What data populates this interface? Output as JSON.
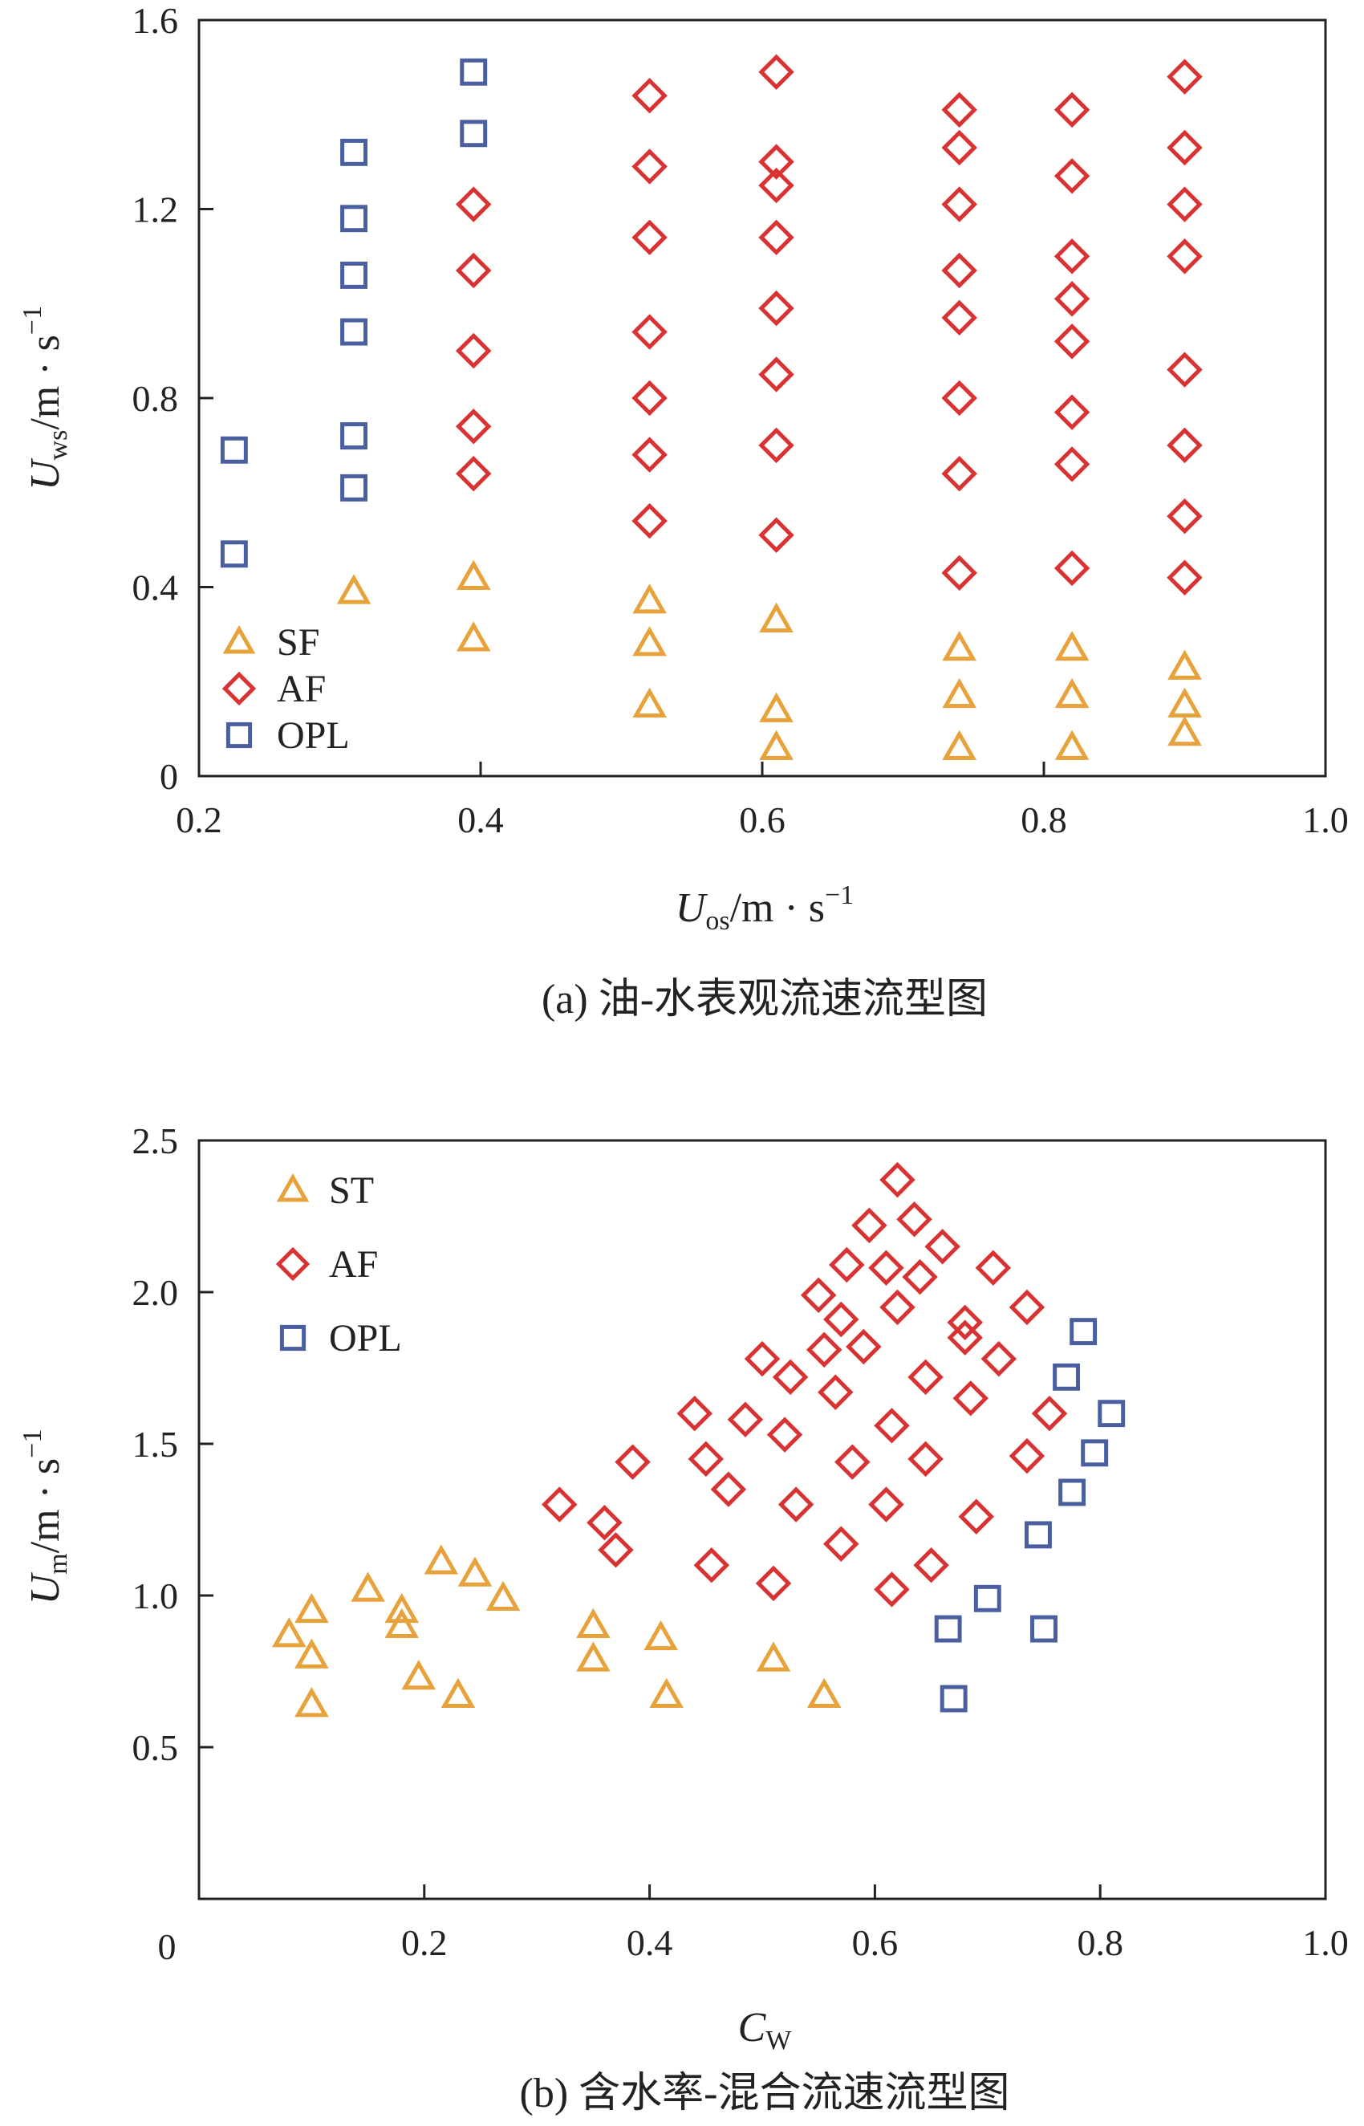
{
  "colors": {
    "SF": "#e8a23c",
    "ST": "#e8a23c",
    "AF": "#d93232",
    "OPL": "#4a5fa0",
    "axis": "#222222"
  },
  "chart_data": [
    {
      "type": "scatter",
      "title": "",
      "caption": "(a) 油-水表观流速流型图",
      "xlabel": {
        "main": "U",
        "sub": "os",
        "rest": "/m · s",
        "sup": "−1"
      },
      "ylabel": {
        "main": "U",
        "sub": "ws",
        "rest": "/m · s",
        "sup": "−1"
      },
      "xlim": [
        0.2,
        1.0
      ],
      "ylim": [
        0,
        1.6
      ],
      "xticks": [
        "0.2",
        "0.4",
        "0.6",
        "0.8",
        "1.0"
      ],
      "yticks": [
        "0",
        "0.4",
        "0.8",
        "1.2",
        "1.6"
      ],
      "legend_position": "bottom-left",
      "series": [
        {
          "name": "SF",
          "marker": "triangle",
          "color_key": "SF",
          "points": [
            [
              0.31,
              0.39
            ],
            [
              0.395,
              0.42
            ],
            [
              0.395,
              0.29
            ],
            [
              0.52,
              0.37
            ],
            [
              0.52,
              0.28
            ],
            [
              0.52,
              0.15
            ],
            [
              0.61,
              0.33
            ],
            [
              0.61,
              0.14
            ],
            [
              0.61,
              0.06
            ],
            [
              0.74,
              0.27
            ],
            [
              0.74,
              0.17
            ],
            [
              0.74,
              0.06
            ],
            [
              0.82,
              0.27
            ],
            [
              0.82,
              0.17
            ],
            [
              0.82,
              0.06
            ],
            [
              0.9,
              0.23
            ],
            [
              0.9,
              0.15
            ],
            [
              0.9,
              0.09
            ]
          ]
        },
        {
          "name": "AF",
          "marker": "diamond",
          "color_key": "AF",
          "points": [
            [
              0.395,
              1.21
            ],
            [
              0.395,
              1.07
            ],
            [
              0.395,
              0.9
            ],
            [
              0.395,
              0.74
            ],
            [
              0.395,
              0.64
            ],
            [
              0.52,
              1.44
            ],
            [
              0.52,
              1.29
            ],
            [
              0.52,
              1.14
            ],
            [
              0.52,
              0.94
            ],
            [
              0.52,
              0.8
            ],
            [
              0.52,
              0.68
            ],
            [
              0.52,
              0.54
            ],
            [
              0.61,
              1.49
            ],
            [
              0.61,
              1.3
            ],
            [
              0.61,
              1.25
            ],
            [
              0.61,
              1.14
            ],
            [
              0.61,
              0.99
            ],
            [
              0.61,
              0.85
            ],
            [
              0.61,
              0.7
            ],
            [
              0.61,
              0.51
            ],
            [
              0.74,
              1.41
            ],
            [
              0.74,
              1.33
            ],
            [
              0.74,
              1.21
            ],
            [
              0.74,
              1.07
            ],
            [
              0.74,
              0.97
            ],
            [
              0.74,
              0.8
            ],
            [
              0.74,
              0.64
            ],
            [
              0.74,
              0.43
            ],
            [
              0.82,
              1.41
            ],
            [
              0.82,
              1.27
            ],
            [
              0.82,
              1.1
            ],
            [
              0.82,
              1.01
            ],
            [
              0.82,
              0.92
            ],
            [
              0.82,
              0.77
            ],
            [
              0.82,
              0.66
            ],
            [
              0.82,
              0.44
            ],
            [
              0.9,
              1.48
            ],
            [
              0.9,
              1.33
            ],
            [
              0.9,
              1.21
            ],
            [
              0.9,
              1.1
            ],
            [
              0.9,
              0.86
            ],
            [
              0.9,
              0.7
            ],
            [
              0.9,
              0.55
            ],
            [
              0.9,
              0.42
            ]
          ]
        },
        {
          "name": "OPL",
          "marker": "square",
          "color_key": "OPL",
          "points": [
            [
              0.225,
              0.69
            ],
            [
              0.225,
              0.47
            ],
            [
              0.31,
              1.32
            ],
            [
              0.31,
              1.18
            ],
            [
              0.31,
              1.06
            ],
            [
              0.31,
              0.94
            ],
            [
              0.31,
              0.72
            ],
            [
              0.31,
              0.61
            ],
            [
              0.395,
              1.49
            ],
            [
              0.395,
              1.36
            ]
          ]
        }
      ]
    },
    {
      "type": "scatter",
      "title": "",
      "caption": "(b) 含水率-混合流速流型图",
      "xlabel": {
        "main": "C",
        "sub": "W",
        "rest": "",
        "sup": ""
      },
      "ylabel": {
        "main": "U",
        "sub": "m",
        "rest": "/m · s",
        "sup": "−1"
      },
      "xlim": [
        0,
        1.0
      ],
      "ylim": [
        0,
        2.5
      ],
      "xticks": [
        "0",
        "0.2",
        "0.4",
        "0.6",
        "0.8",
        "1.0"
      ],
      "yticks": [
        "0.5",
        "1.0",
        "1.5",
        "2.0",
        "2.5"
      ],
      "legend_position": "top-left",
      "series": [
        {
          "name": "ST",
          "marker": "triangle",
          "color_key": "ST",
          "points": [
            [
              0.08,
              0.87
            ],
            [
              0.1,
              0.95
            ],
            [
              0.1,
              0.8
            ],
            [
              0.1,
              0.64
            ],
            [
              0.15,
              1.02
            ],
            [
              0.18,
              0.95
            ],
            [
              0.18,
              0.9
            ],
            [
              0.195,
              0.73
            ],
            [
              0.215,
              1.11
            ],
            [
              0.23,
              0.67
            ],
            [
              0.245,
              1.07
            ],
            [
              0.27,
              0.99
            ],
            [
              0.35,
              0.9
            ],
            [
              0.35,
              0.79
            ],
            [
              0.41,
              0.86
            ],
            [
              0.415,
              0.67
            ],
            [
              0.51,
              0.79
            ],
            [
              0.555,
              0.67
            ]
          ]
        },
        {
          "name": "AF",
          "marker": "diamond",
          "color_key": "AF",
          "points": [
            [
              0.32,
              1.3
            ],
            [
              0.36,
              1.24
            ],
            [
              0.37,
              1.15
            ],
            [
              0.385,
              1.44
            ],
            [
              0.44,
              1.6
            ],
            [
              0.45,
              1.45
            ],
            [
              0.455,
              1.1
            ],
            [
              0.47,
              1.35
            ],
            [
              0.485,
              1.58
            ],
            [
              0.5,
              1.78
            ],
            [
              0.51,
              1.04
            ],
            [
              0.52,
              1.53
            ],
            [
              0.525,
              1.72
            ],
            [
              0.53,
              1.3
            ],
            [
              0.55,
              1.99
            ],
            [
              0.555,
              1.81
            ],
            [
              0.565,
              1.67
            ],
            [
              0.57,
              1.17
            ],
            [
              0.57,
              1.91
            ],
            [
              0.575,
              2.09
            ],
            [
              0.58,
              1.44
            ],
            [
              0.59,
              1.82
            ],
            [
              0.595,
              2.22
            ],
            [
              0.61,
              1.3
            ],
            [
              0.61,
              2.08
            ],
            [
              0.615,
              1.02
            ],
            [
              0.615,
              1.56
            ],
            [
              0.62,
              2.37
            ],
            [
              0.62,
              1.95
            ],
            [
              0.635,
              2.24
            ],
            [
              0.64,
              2.05
            ],
            [
              0.645,
              1.72
            ],
            [
              0.645,
              1.45
            ],
            [
              0.65,
              1.1
            ],
            [
              0.66,
              2.15
            ],
            [
              0.68,
              1.85
            ],
            [
              0.68,
              1.9
            ],
            [
              0.685,
              1.65
            ],
            [
              0.69,
              1.26
            ],
            [
              0.705,
              2.08
            ],
            [
              0.71,
              1.78
            ],
            [
              0.735,
              1.95
            ],
            [
              0.735,
              1.46
            ],
            [
              0.755,
              1.6
            ]
          ]
        },
        {
          "name": "OPL",
          "marker": "square",
          "color_key": "OPL",
          "points": [
            [
              0.665,
              0.89
            ],
            [
              0.67,
              0.66
            ],
            [
              0.7,
              0.99
            ],
            [
              0.745,
              1.2
            ],
            [
              0.75,
              0.89
            ],
            [
              0.77,
              1.72
            ],
            [
              0.775,
              1.34
            ],
            [
              0.785,
              1.87
            ],
            [
              0.795,
              1.47
            ],
            [
              0.81,
              1.6
            ]
          ]
        }
      ]
    }
  ]
}
